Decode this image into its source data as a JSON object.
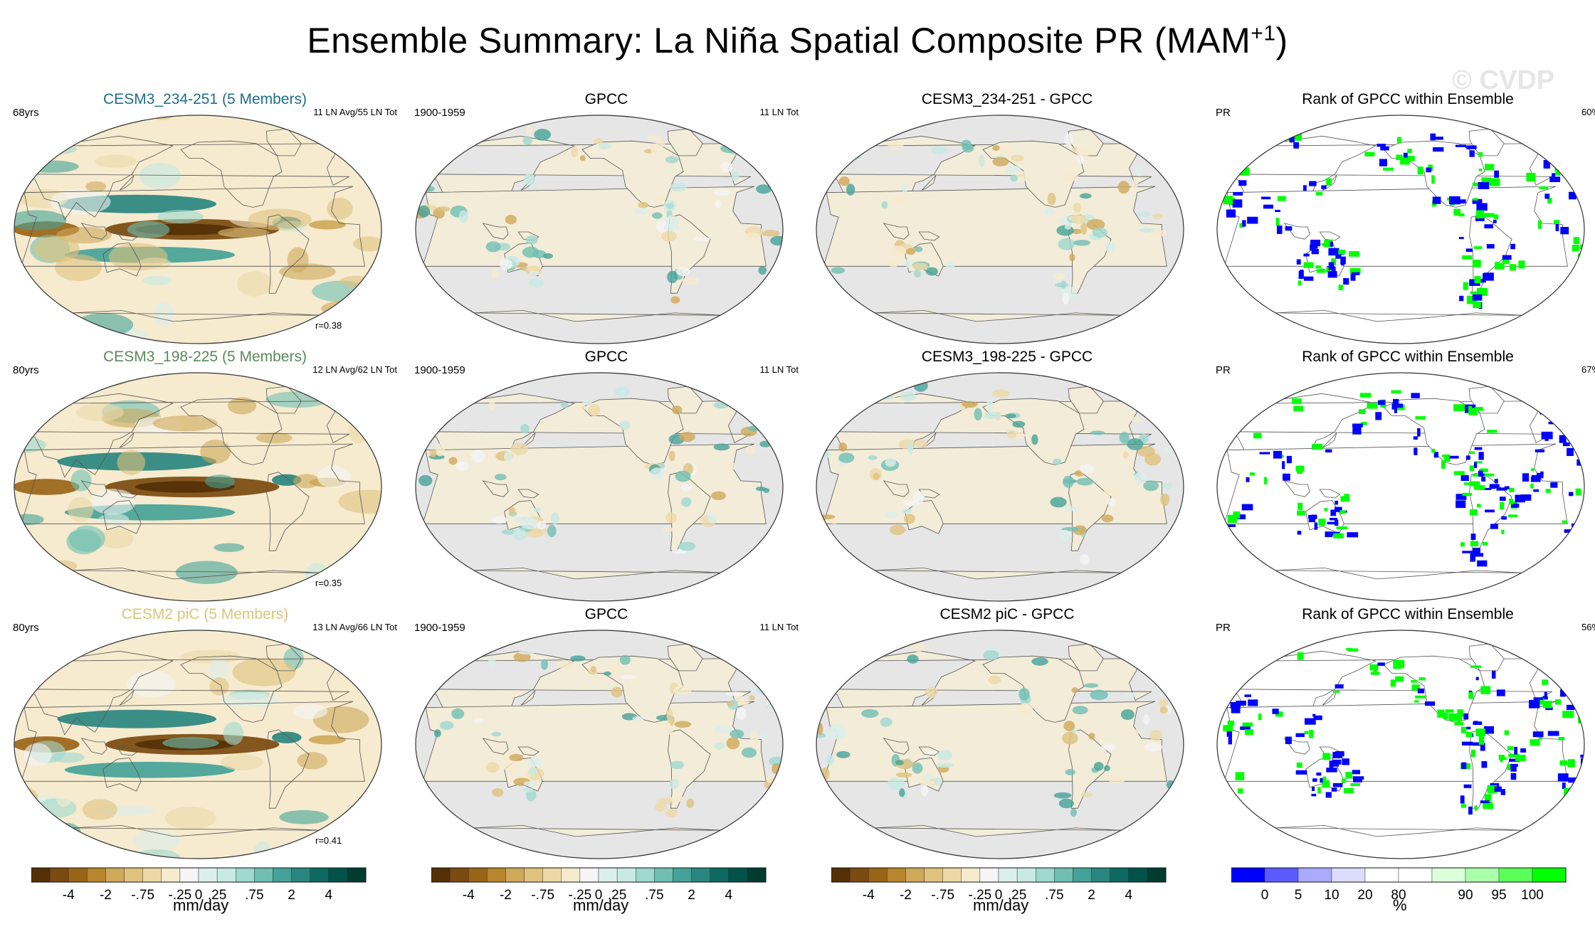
{
  "title": "Ensemble Summary: La Niña Spatial Composite PR (MAM",
  "title_sup": "+1",
  "title_close": ")",
  "watermark": "© CVDP",
  "colors": {
    "title_1": "#1e6e8c",
    "title_2": "#5a8a5a",
    "title_3": "#d9c57a",
    "ocean_obs": "#e6e6e6",
    "rank_low": "#0000ff",
    "rank_high": "#00ff00"
  },
  "panels": [
    {
      "row": 0,
      "col": 0,
      "title": "CESM3_234-251 (5 Members)",
      "title_color": "#1e6e8c",
      "left": "68yrs",
      "right": "11 LN Avg/55 LN Tot",
      "corr": "r=0.38",
      "kind": "model",
      "seed": 11
    },
    {
      "row": 0,
      "col": 1,
      "title": "GPCC",
      "left": "1900-1959",
      "right": "11 LN Tot",
      "kind": "obs",
      "seed": 21
    },
    {
      "row": 0,
      "col": 2,
      "title": "CESM3_234-251 - GPCC",
      "kind": "diff",
      "seed": 31
    },
    {
      "row": 0,
      "col": 3,
      "title": "Rank of GPCC within Ensemble",
      "left": "PR",
      "right": "60%",
      "kind": "rank",
      "seed": 41
    },
    {
      "row": 1,
      "col": 0,
      "title": "CESM3_198-225 (5 Members)",
      "title_color": "#5a8a5a",
      "left": "80yrs",
      "right": "12 LN Avg/62 LN Tot",
      "corr": "r=0.35",
      "kind": "model",
      "seed": 12
    },
    {
      "row": 1,
      "col": 1,
      "title": "GPCC",
      "left": "1900-1959",
      "right": "11 LN Tot",
      "kind": "obs",
      "seed": 22
    },
    {
      "row": 1,
      "col": 2,
      "title": "CESM3_198-225 - GPCC",
      "kind": "diff",
      "seed": 32
    },
    {
      "row": 1,
      "col": 3,
      "title": "Rank of GPCC within Ensemble",
      "left": "PR",
      "right": "67%",
      "kind": "rank",
      "seed": 42
    },
    {
      "row": 2,
      "col": 0,
      "title": "CESM2 piC (5 Members)",
      "title_color": "#d9c57a",
      "left": "80yrs",
      "right": "13 LN Avg/66 LN Tot",
      "corr": "r=0.41",
      "kind": "model",
      "seed": 13
    },
    {
      "row": 2,
      "col": 1,
      "title": "GPCC",
      "left": "1900-1959",
      "right": "11 LN Tot",
      "kind": "obs",
      "seed": 23
    },
    {
      "row": 2,
      "col": 2,
      "title": "CESM2 piC - GPCC",
      "kind": "diff",
      "seed": 33
    },
    {
      "row": 2,
      "col": 3,
      "title": "Rank of GPCC within Ensemble",
      "left": "PR",
      "right": "56%",
      "kind": "rank",
      "seed": 43
    }
  ],
  "colorbars": {
    "pr": {
      "units": "mm/day",
      "colors": [
        "#543005",
        "#7a4a0f",
        "#9a6418",
        "#b8862e",
        "#cfa95a",
        "#dfc27d",
        "#ecd9a8",
        "#f6ebcf",
        "#f5f5f5",
        "#dcefeb",
        "#c7eae5",
        "#9ed8cf",
        "#6fbfb3",
        "#45a298",
        "#2a8580",
        "#0d6a63",
        "#01534a",
        "#003c30"
      ],
      "labels": [
        "-4",
        "-2",
        "-.75",
        "-.25",
        "0",
        ".25",
        ".75",
        "2",
        "4"
      ]
    },
    "rank": {
      "units": "%",
      "colors": [
        "#0000ff",
        "#5a5aff",
        "#aaaaff",
        "#dcdcff",
        "#ffffff",
        "#ffffff",
        "#dcffdc",
        "#aaffaa",
        "#5aff5a",
        "#00ff00"
      ],
      "labels": [
        "0",
        "5",
        "10",
        "20",
        "80",
        "90",
        "95",
        "100"
      ]
    }
  },
  "chart_data": [
    {
      "type": "heatmap",
      "title": "CESM3_234-251 (5 Members)",
      "subtitle_left": "68yrs",
      "subtitle_right": "11 LN Avg/55 LN Tot",
      "annotation": "r=0.38",
      "units": "mm/day",
      "pattern": "dry central/eastern equatorial Pacific, wet Maritime Continent and off-equatorial bands"
    },
    {
      "type": "heatmap",
      "title": "GPCC",
      "subtitle_left": "1900-1959",
      "subtitle_right": "11 LN Tot",
      "units": "mm/day",
      "pattern": "land-only observations"
    },
    {
      "type": "heatmap",
      "title": "CESM3_234-251 - GPCC",
      "units": "mm/day"
    },
    {
      "type": "heatmap",
      "title": "Rank of GPCC within Ensemble",
      "subtitle_left": "PR",
      "subtitle_right": "60%",
      "units": "%"
    },
    {
      "type": "heatmap",
      "title": "CESM3_198-225 (5 Members)",
      "subtitle_left": "80yrs",
      "subtitle_right": "12 LN Avg/62 LN Tot",
      "annotation": "r=0.35",
      "units": "mm/day"
    },
    {
      "type": "heatmap",
      "title": "GPCC",
      "subtitle_left": "1900-1959",
      "subtitle_right": "11 LN Tot",
      "units": "mm/day"
    },
    {
      "type": "heatmap",
      "title": "CESM3_198-225 - GPCC",
      "units": "mm/day"
    },
    {
      "type": "heatmap",
      "title": "Rank of GPCC within Ensemble",
      "subtitle_left": "PR",
      "subtitle_right": "67%",
      "units": "%"
    },
    {
      "type": "heatmap",
      "title": "CESM2 piC (5 Members)",
      "subtitle_left": "80yrs",
      "subtitle_right": "13 LN Avg/66 LN Tot",
      "annotation": "r=0.41",
      "units": "mm/day"
    },
    {
      "type": "heatmap",
      "title": "GPCC",
      "subtitle_left": "1900-1959",
      "subtitle_right": "11 LN Tot",
      "units": "mm/day"
    },
    {
      "type": "heatmap",
      "title": "CESM2 piC - GPCC",
      "units": "mm/day"
    },
    {
      "type": "heatmap",
      "title": "Rank of GPCC within Ensemble",
      "subtitle_left": "PR",
      "subtitle_right": "56%",
      "units": "%"
    }
  ]
}
